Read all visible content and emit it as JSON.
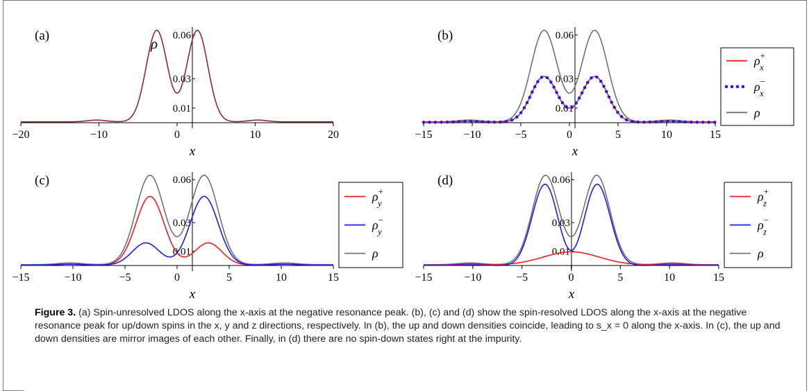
{
  "caption": {
    "label": "Figure 3.",
    "text": "(a) Spin-unresolved LDOS along the x-axis at the negative resonance peak. (b), (c) and (d) show the spin-resolved LDOS along the x-axis at the negative resonance peak for up/down spins in the x, y and z directions, respectively. In (b), the up and down densities coincide, leading to s_x = 0 along the x-axis. In (c), the up and down densities are mirror images of each other. Finally, in (d) there are no spin-down states right at the impurity."
  },
  "colors": {
    "red": "#ee1c1c",
    "blue": "#1a1aee",
    "gray": "#707070",
    "darkred": "#8b2a2a"
  },
  "chart_data": [
    {
      "panel": "(a)",
      "type": "line",
      "xlabel": "x",
      "ylabel": "ρ",
      "xlim": [
        -20,
        20
      ],
      "x_ticks": [
        -20,
        -10,
        0,
        10,
        20
      ],
      "x_tick_labels": [
        "−20",
        "−10",
        "0",
        "10",
        "20"
      ],
      "y_ticks": [
        0.01,
        0.03,
        0.06
      ],
      "y_tick_labels": [
        "0.01",
        "0.03",
        "0.06"
      ],
      "legend": [],
      "series": [
        {
          "color": "darkred",
          "style": "solid",
          "shape": "total"
        }
      ]
    },
    {
      "panel": "(b)",
      "type": "line",
      "xlabel": "x",
      "ylabel": "",
      "xlim": [
        -15,
        15
      ],
      "x_ticks": [
        -15,
        -10,
        -5,
        0,
        5,
        10,
        15
      ],
      "x_tick_labels": [
        "−15",
        "−10",
        "−5",
        "0",
        "5",
        "10",
        "15"
      ],
      "y_ticks": [
        0.01,
        0.03,
        0.06
      ],
      "y_tick_labels": [
        "0.01",
        "0.03",
        "0.06"
      ],
      "legend": [
        {
          "base": "ρ",
          "sub": "x",
          "sup": "+",
          "color": "red",
          "style": "solid"
        },
        {
          "base": "ρ",
          "sub": "x",
          "sup": "−",
          "color": "blue",
          "style": "dotted"
        },
        {
          "base": "ρ",
          "sub": "",
          "sup": "",
          "color": "gray",
          "style": "solid"
        }
      ],
      "series": [
        {
          "color": "gray",
          "style": "solid",
          "shape": "total"
        },
        {
          "color": "red",
          "style": "solid",
          "shape": "half"
        },
        {
          "color": "blue",
          "style": "dotted",
          "shape": "half"
        }
      ]
    },
    {
      "panel": "(c)",
      "type": "line",
      "xlabel": "x",
      "ylabel": "",
      "xlim": [
        -15,
        15
      ],
      "x_ticks": [
        -15,
        -10,
        -5,
        0,
        5,
        10,
        15
      ],
      "x_tick_labels": [
        "−15",
        "−10",
        "−5",
        "0",
        "5",
        "10",
        "15"
      ],
      "y_ticks": [
        0.01,
        0.03,
        0.06
      ],
      "y_tick_labels": [
        "0.01",
        "0.03",
        "0.06"
      ],
      "legend": [
        {
          "base": "ρ",
          "sub": "y",
          "sup": "+",
          "color": "red",
          "style": "solid"
        },
        {
          "base": "ρ",
          "sub": "y",
          "sup": "−",
          "color": "blue",
          "style": "solid"
        },
        {
          "base": "ρ",
          "sub": "",
          "sup": "",
          "color": "gray",
          "style": "solid"
        }
      ],
      "series": [
        {
          "color": "gray",
          "style": "solid",
          "shape": "total"
        },
        {
          "color": "red",
          "style": "solid",
          "shape": "y_up"
        },
        {
          "color": "blue",
          "style": "solid",
          "shape": "y_down"
        }
      ]
    },
    {
      "panel": "(d)",
      "type": "line",
      "xlabel": "x",
      "ylabel": "",
      "xlim": [
        -15,
        15
      ],
      "x_ticks": [
        -15,
        -10,
        -5,
        0,
        5,
        10,
        15
      ],
      "x_tick_labels": [
        "−15",
        "−10",
        "−5",
        "0",
        "5",
        "10",
        "15"
      ],
      "y_ticks": [
        0.01,
        0.03,
        0.06
      ],
      "y_tick_labels": [
        "0.01",
        "0.03",
        "0.06"
      ],
      "legend": [
        {
          "base": "ρ",
          "sub": "z",
          "sup": "+",
          "color": "red",
          "style": "solid"
        },
        {
          "base": "ρ",
          "sub": "z",
          "sup": "−",
          "color": "blue",
          "style": "solid"
        },
        {
          "base": "ρ",
          "sub": "",
          "sup": "",
          "color": "gray",
          "style": "solid"
        }
      ],
      "series": [
        {
          "color": "gray",
          "style": "solid",
          "shape": "total"
        },
        {
          "color": "red",
          "style": "solid",
          "shape": "z_up"
        },
        {
          "color": "blue",
          "style": "solid",
          "shape": "z_down"
        }
      ]
    }
  ]
}
